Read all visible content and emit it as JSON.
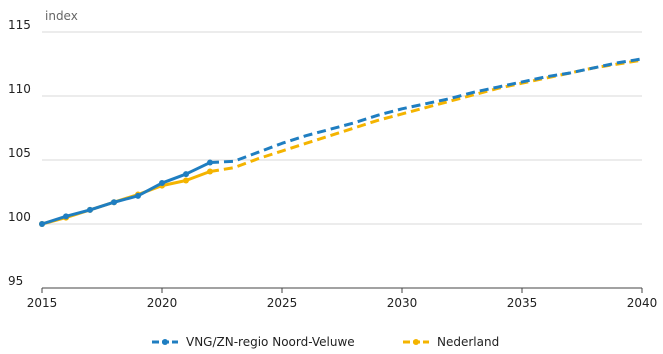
{
  "chart_data": {
    "type": "line",
    "ylabel": "index",
    "xlabel": "",
    "xlim": [
      2015,
      2040
    ],
    "ylim": [
      95,
      115
    ],
    "xticks": [
      "2015",
      "2020",
      "2025",
      "2030",
      "2035",
      "2040"
    ],
    "yticks": [
      "95",
      "100",
      "105",
      "110",
      "115"
    ],
    "grid": "horizontal",
    "legend_position": "bottom-center",
    "observed_until": 2022,
    "series": [
      {
        "name": "VNG/ZN-regio Noord-Veluwe",
        "color": "#1f7ec1",
        "x": [
          2015,
          2016,
          2017,
          2018,
          2019,
          2020,
          2021,
          2022,
          2023,
          2024,
          2025,
          2026,
          2027,
          2028,
          2029,
          2030,
          2031,
          2032,
          2033,
          2034,
          2035,
          2036,
          2037,
          2038,
          2039,
          2040
        ],
        "y": [
          100.0,
          100.6,
          101.1,
          101.7,
          102.2,
          103.2,
          103.9,
          104.8,
          104.9,
          105.6,
          106.3,
          106.9,
          107.4,
          107.9,
          108.5,
          109.0,
          109.4,
          109.8,
          110.3,
          110.7,
          111.1,
          111.5,
          111.8,
          112.2,
          112.6,
          112.9
        ]
      },
      {
        "name": "Nederland",
        "color": "#f4b400",
        "x": [
          2015,
          2016,
          2017,
          2018,
          2019,
          2020,
          2021,
          2022,
          2023,
          2024,
          2025,
          2026,
          2027,
          2028,
          2029,
          2030,
          2031,
          2032,
          2033,
          2034,
          2035,
          2036,
          2037,
          2038,
          2039,
          2040
        ],
        "y": [
          100.0,
          100.5,
          101.1,
          101.7,
          102.3,
          103.0,
          103.4,
          104.1,
          104.4,
          105.1,
          105.7,
          106.3,
          106.9,
          107.5,
          108.1,
          108.6,
          109.1,
          109.6,
          110.1,
          110.6,
          111.0,
          111.4,
          111.8,
          112.2,
          112.5,
          112.8
        ]
      }
    ]
  }
}
